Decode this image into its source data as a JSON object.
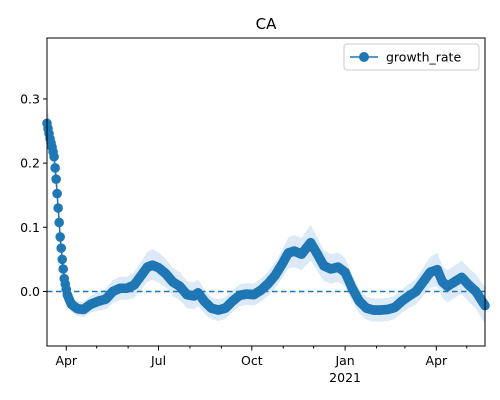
{
  "chart_data": {
    "type": "line",
    "title": "CA",
    "xlabel": "",
    "ylabel": "",
    "x_axis": {
      "kind": "date",
      "range": [
        "2020-03-13",
        "2021-05-19"
      ],
      "major_ticks": [
        {
          "date": "2020-04-01",
          "label": "Apr",
          "sublabel": ""
        },
        {
          "date": "2020-07-01",
          "label": "Jul",
          "sublabel": ""
        },
        {
          "date": "2020-10-01",
          "label": "Oct",
          "sublabel": ""
        },
        {
          "date": "2021-01-01",
          "label": "Jan",
          "sublabel": "2021"
        },
        {
          "date": "2021-04-01",
          "label": "Apr",
          "sublabel": ""
        }
      ],
      "minor_ticks": [
        "2020-05-01",
        "2020-06-01",
        "2020-08-01",
        "2020-09-01",
        "2020-11-01",
        "2020-12-01",
        "2021-02-01",
        "2021-03-01",
        "2021-05-01"
      ]
    },
    "y_axis": {
      "range": [
        -0.085,
        0.395
      ],
      "ticks": [
        0.0,
        0.1,
        0.2,
        0.3
      ],
      "tick_labels": [
        "0.0",
        "0.1",
        "0.2",
        "0.3"
      ]
    },
    "reference_line": {
      "y": 0.0,
      "style": "dashed"
    },
    "legend": {
      "placement": "top-right"
    },
    "series": [
      {
        "name": "growth_rate",
        "color": "#1f77b4",
        "band_color": "#dce9f6",
        "marker": "circle",
        "points": [
          {
            "x": "2020-03-13",
            "y": 0.262,
            "lo": 0.235,
            "hi": 0.29
          },
          {
            "x": "2020-03-16",
            "y": 0.238,
            "lo": 0.212,
            "hi": 0.266
          },
          {
            "x": "2020-03-18",
            "y": 0.225,
            "lo": 0.2,
            "hi": 0.252
          },
          {
            "x": "2020-03-20",
            "y": 0.21,
            "lo": 0.186,
            "hi": 0.236
          },
          {
            "x": "2020-03-22",
            "y": 0.175,
            "lo": 0.152,
            "hi": 0.2
          },
          {
            "x": "2020-03-24",
            "y": 0.13,
            "lo": 0.108,
            "hi": 0.154
          },
          {
            "x": "2020-03-26",
            "y": 0.085,
            "lo": 0.066,
            "hi": 0.106
          },
          {
            "x": "2020-03-28",
            "y": 0.05,
            "lo": 0.033,
            "hi": 0.069
          },
          {
            "x": "2020-03-30",
            "y": 0.02,
            "lo": 0.005,
            "hi": 0.037
          },
          {
            "x": "2020-04-02",
            "y": -0.005,
            "lo": -0.018,
            "hi": 0.01
          },
          {
            "x": "2020-04-06",
            "y": -0.02,
            "lo": -0.032,
            "hi": -0.007
          },
          {
            "x": "2020-04-12",
            "y": -0.027,
            "lo": -0.038,
            "hi": -0.015
          },
          {
            "x": "2020-04-18",
            "y": -0.028,
            "lo": -0.04,
            "hi": -0.016
          },
          {
            "x": "2020-04-25",
            "y": -0.02,
            "lo": -0.033,
            "hi": -0.007
          },
          {
            "x": "2020-05-03",
            "y": -0.015,
            "lo": -0.03,
            "hi": 0.0
          },
          {
            "x": "2020-05-10",
            "y": -0.012,
            "lo": -0.028,
            "hi": 0.004
          },
          {
            "x": "2020-05-17",
            "y": 0.0,
            "lo": -0.018,
            "hi": 0.018
          },
          {
            "x": "2020-05-24",
            "y": 0.005,
            "lo": -0.013,
            "hi": 0.023
          },
          {
            "x": "2020-05-31",
            "y": 0.005,
            "lo": -0.013,
            "hi": 0.023
          },
          {
            "x": "2020-06-07",
            "y": 0.01,
            "lo": -0.01,
            "hi": 0.03
          },
          {
            "x": "2020-06-14",
            "y": 0.025,
            "lo": 0.003,
            "hi": 0.047
          },
          {
            "x": "2020-06-20",
            "y": 0.038,
            "lo": 0.015,
            "hi": 0.062
          },
          {
            "x": "2020-06-25",
            "y": 0.041,
            "lo": 0.018,
            "hi": 0.066
          },
          {
            "x": "2020-07-01",
            "y": 0.037,
            "lo": 0.014,
            "hi": 0.061
          },
          {
            "x": "2020-07-08",
            "y": 0.028,
            "lo": 0.006,
            "hi": 0.051
          },
          {
            "x": "2020-07-15",
            "y": 0.015,
            "lo": -0.007,
            "hi": 0.037
          },
          {
            "x": "2020-07-22",
            "y": 0.008,
            "lo": -0.014,
            "hi": 0.03
          },
          {
            "x": "2020-07-29",
            "y": -0.005,
            "lo": -0.026,
            "hi": 0.016
          },
          {
            "x": "2020-08-05",
            "y": -0.007,
            "lo": -0.028,
            "hi": 0.014
          },
          {
            "x": "2020-08-09",
            "y": -0.002,
            "lo": -0.023,
            "hi": 0.019
          },
          {
            "x": "2020-08-15",
            "y": -0.015,
            "lo": -0.034,
            "hi": 0.004
          },
          {
            "x": "2020-08-22",
            "y": -0.026,
            "lo": -0.043,
            "hi": -0.009
          },
          {
            "x": "2020-08-29",
            "y": -0.029,
            "lo": -0.046,
            "hi": -0.012
          },
          {
            "x": "2020-09-05",
            "y": -0.026,
            "lo": -0.043,
            "hi": -0.009
          },
          {
            "x": "2020-09-12",
            "y": -0.015,
            "lo": -0.032,
            "hi": 0.002
          },
          {
            "x": "2020-09-19",
            "y": -0.006,
            "lo": -0.023,
            "hi": 0.011
          },
          {
            "x": "2020-09-26",
            "y": -0.004,
            "lo": -0.021,
            "hi": 0.013
          },
          {
            "x": "2020-10-03",
            "y": -0.005,
            "lo": -0.022,
            "hi": 0.012
          },
          {
            "x": "2020-10-10",
            "y": 0.002,
            "lo": -0.016,
            "hi": 0.02
          },
          {
            "x": "2020-10-17",
            "y": 0.012,
            "lo": -0.007,
            "hi": 0.031
          },
          {
            "x": "2020-10-24",
            "y": 0.025,
            "lo": 0.005,
            "hi": 0.045
          },
          {
            "x": "2020-10-31",
            "y": 0.043,
            "lo": 0.021,
            "hi": 0.065
          },
          {
            "x": "2020-11-06",
            "y": 0.06,
            "lo": 0.036,
            "hi": 0.084
          },
          {
            "x": "2020-11-12",
            "y": 0.063,
            "lo": 0.038,
            "hi": 0.088
          },
          {
            "x": "2020-11-19",
            "y": 0.058,
            "lo": 0.033,
            "hi": 0.083
          },
          {
            "x": "2020-11-25",
            "y": 0.07,
            "lo": 0.043,
            "hi": 0.097
          },
          {
            "x": "2020-11-28",
            "y": 0.076,
            "lo": 0.048,
            "hi": 0.104
          },
          {
            "x": "2020-12-04",
            "y": 0.06,
            "lo": 0.034,
            "hi": 0.086
          },
          {
            "x": "2020-12-11",
            "y": 0.04,
            "lo": 0.016,
            "hi": 0.064
          },
          {
            "x": "2020-12-18",
            "y": 0.035,
            "lo": 0.012,
            "hi": 0.058
          },
          {
            "x": "2020-12-25",
            "y": 0.038,
            "lo": 0.015,
            "hi": 0.061
          },
          {
            "x": "2021-01-01",
            "y": 0.03,
            "lo": 0.008,
            "hi": 0.052
          },
          {
            "x": "2021-01-08",
            "y": 0.005,
            "lo": -0.015,
            "hi": 0.025
          },
          {
            "x": "2021-01-15",
            "y": -0.015,
            "lo": -0.034,
            "hi": 0.004
          },
          {
            "x": "2021-01-22",
            "y": -0.026,
            "lo": -0.044,
            "hi": -0.008
          },
          {
            "x": "2021-01-29",
            "y": -0.029,
            "lo": -0.047,
            "hi": -0.011
          },
          {
            "x": "2021-02-05",
            "y": -0.029,
            "lo": -0.047,
            "hi": -0.011
          },
          {
            "x": "2021-02-12",
            "y": -0.028,
            "lo": -0.046,
            "hi": -0.01
          },
          {
            "x": "2021-02-19",
            "y": -0.025,
            "lo": -0.043,
            "hi": -0.007
          },
          {
            "x": "2021-02-26",
            "y": -0.015,
            "lo": -0.033,
            "hi": 0.003
          },
          {
            "x": "2021-03-05",
            "y": -0.007,
            "lo": -0.026,
            "hi": 0.012
          },
          {
            "x": "2021-03-12",
            "y": 0.0,
            "lo": -0.02,
            "hi": 0.02
          },
          {
            "x": "2021-03-19",
            "y": 0.015,
            "lo": -0.007,
            "hi": 0.037
          },
          {
            "x": "2021-03-26",
            "y": 0.03,
            "lo": 0.006,
            "hi": 0.054
          },
          {
            "x": "2021-04-02",
            "y": 0.034,
            "lo": 0.008,
            "hi": 0.06
          },
          {
            "x": "2021-04-07",
            "y": 0.015,
            "lo": -0.01,
            "hi": 0.04
          },
          {
            "x": "2021-04-12",
            "y": 0.008,
            "lo": -0.017,
            "hi": 0.033
          },
          {
            "x": "2021-04-19",
            "y": 0.015,
            "lo": -0.01,
            "hi": 0.04
          },
          {
            "x": "2021-04-26",
            "y": 0.022,
            "lo": -0.004,
            "hi": 0.048
          },
          {
            "x": "2021-05-03",
            "y": 0.01,
            "lo": -0.016,
            "hi": 0.036
          },
          {
            "x": "2021-05-10",
            "y": 0.0,
            "lo": -0.027,
            "hi": 0.027
          },
          {
            "x": "2021-05-19",
            "y": -0.022,
            "lo": -0.05,
            "hi": 0.006
          }
        ]
      }
    ]
  }
}
